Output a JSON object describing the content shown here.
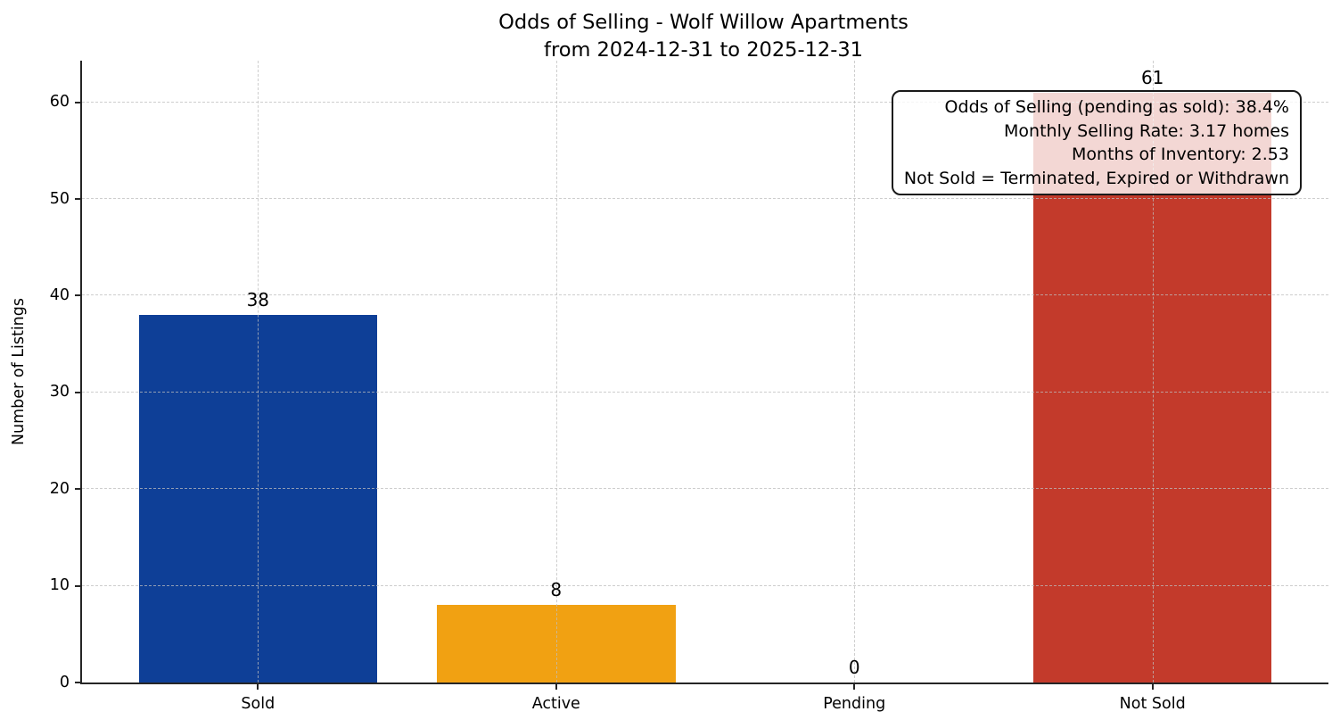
{
  "chart_data": {
    "type": "bar",
    "title": "Odds of Selling - Wolf Willow Apartments",
    "subtitle": "from 2024-12-31 to 2025-12-31",
    "categories": [
      "Sold",
      "Active",
      "Pending",
      "Not Sold"
    ],
    "values": [
      38,
      8,
      0,
      61
    ],
    "value_labels": [
      "38",
      "8",
      "0",
      "61"
    ],
    "bar_colors": [
      "#0e3f97",
      "#f1a112",
      "#999999",
      "#c33a2b"
    ],
    "xlabel": "",
    "ylabel": "Number of Listings",
    "yticks": [
      0,
      10,
      20,
      30,
      40,
      50,
      60
    ],
    "ylim": [
      0,
      64.3
    ],
    "bar_width_fraction": 0.8,
    "x_edge_padding": 0.59,
    "grid": {
      "visible": true,
      "style": "dashed",
      "axis": "both",
      "color": "#bebebe",
      "drawn_above_bars": true
    },
    "axis_color": "#262626",
    "legend": "none",
    "annotation": {
      "align": "right",
      "background": "#ffffff",
      "background_opacity": 0.8,
      "border_color": "#1a1a1a",
      "lines": [
        "Odds of Selling (pending as sold): 38.4%",
        "Monthly Selling Rate: 3.17 homes",
        "Months of Inventory: 2.53",
        "Not Sold = Terminated, Expired or Withdrawn"
      ]
    }
  }
}
